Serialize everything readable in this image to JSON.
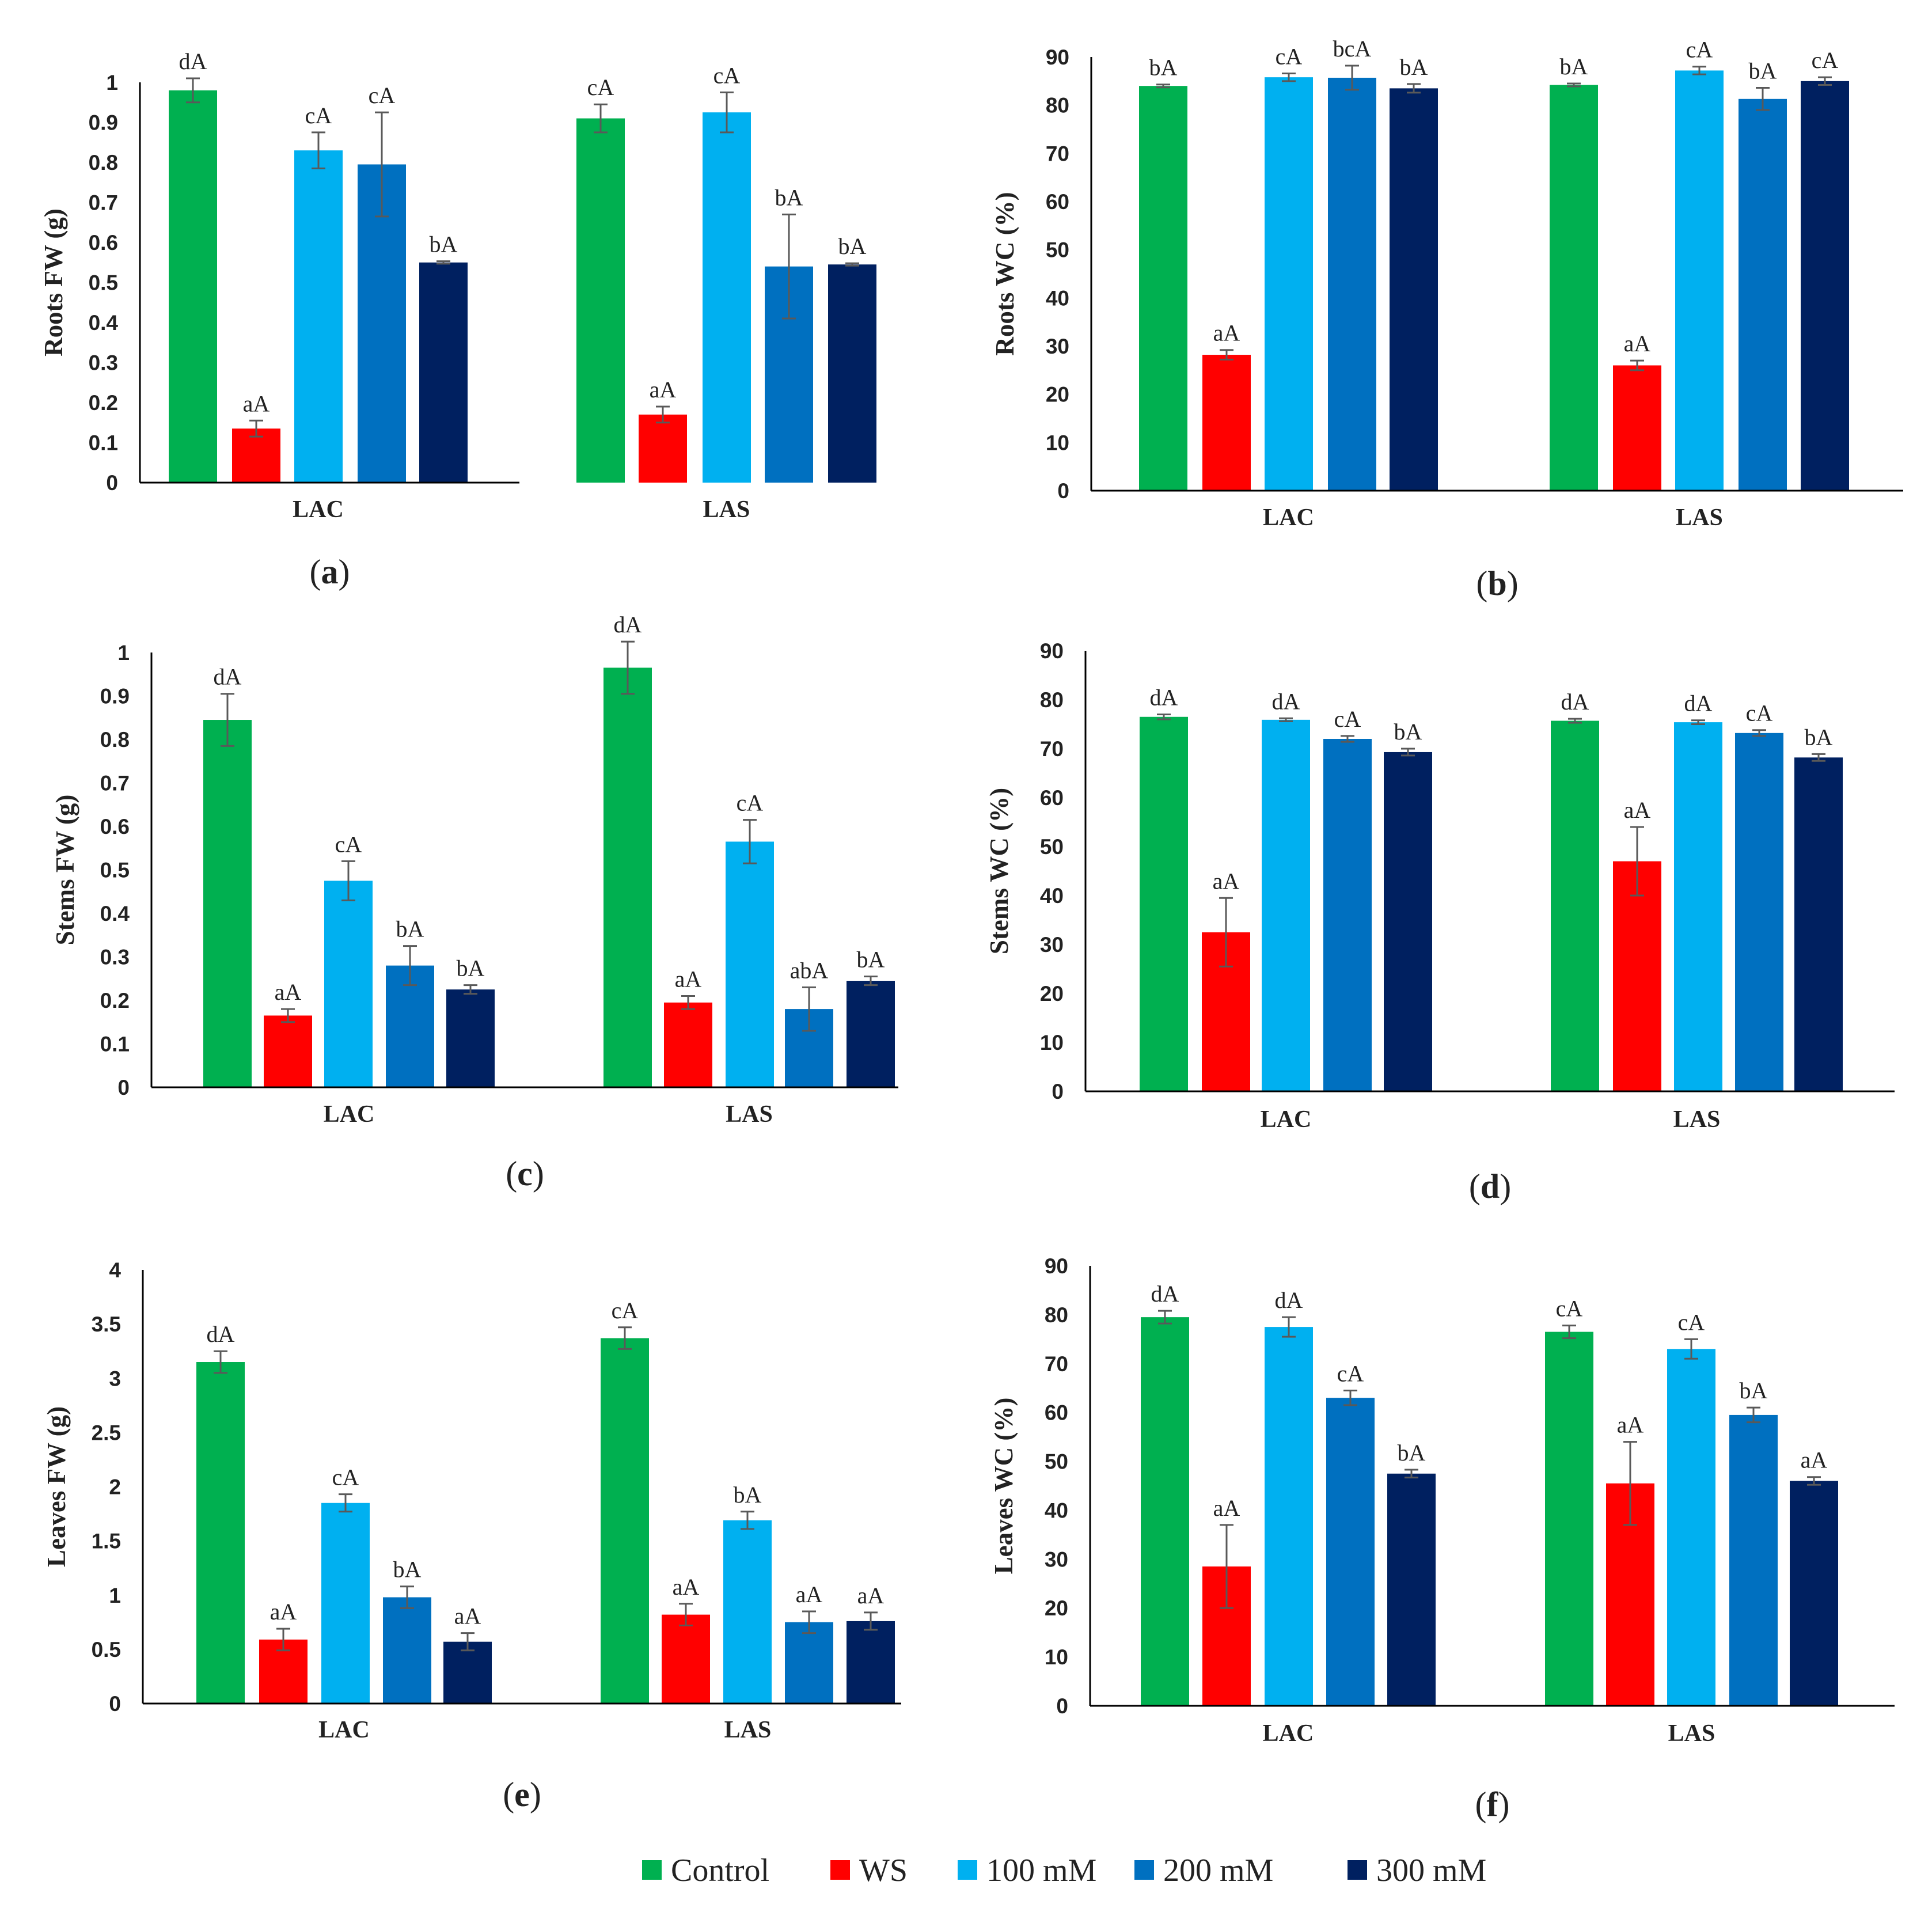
{
  "legend": [
    {
      "name": "Control",
      "color": "#00b050"
    },
    {
      "name": "WS",
      "color": "#ff0000"
    },
    {
      "name": "100 mM",
      "color": "#00b0f0"
    },
    {
      "name": "200 mM",
      "color": "#0070c0"
    },
    {
      "name": "300 mM",
      "color": "#002060"
    }
  ],
  "chart_data": [
    {
      "type": "bar",
      "panel": "a",
      "ylabel": "Roots FW (g)",
      "ylim": [
        0,
        1
      ],
      "yticks": [
        0,
        0.1,
        0.2,
        0.3,
        0.4,
        0.5,
        0.6,
        0.7,
        0.8,
        0.9,
        1
      ],
      "ytick_labels": [
        "0",
        "0.1",
        "0.2",
        "0.3",
        "0.4",
        "0.5",
        "0.6",
        "0.7",
        "0.8",
        "0.9",
        "1"
      ],
      "categories": [
        "LAC",
        "LAS"
      ],
      "series": [
        {
          "name": "Control",
          "values": [
            0.98,
            0.91
          ],
          "errors": [
            0.03,
            0.035
          ],
          "labels": [
            "dA",
            "cA"
          ]
        },
        {
          "name": "WS",
          "values": [
            0.135,
            0.17
          ],
          "errors": [
            0.02,
            0.02
          ],
          "labels": [
            "aA",
            "aA"
          ]
        },
        {
          "name": "100 mM",
          "values": [
            0.83,
            0.925
          ],
          "errors": [
            0.045,
            0.05
          ],
          "labels": [
            "cA",
            "cA"
          ]
        },
        {
          "name": "200 mM",
          "values": [
            0.795,
            0.54
          ],
          "errors": [
            0.13,
            0.13
          ],
          "labels": [
            "cA",
            "bA"
          ]
        },
        {
          "name": "300 mM",
          "values": [
            0.55,
            0.545
          ],
          "errors": [
            0.003,
            0.003
          ],
          "labels": [
            "bA",
            "bA"
          ]
        }
      ]
    },
    {
      "type": "bar",
      "panel": "b",
      "ylabel": "Roots WC (%)",
      "ylim": [
        0,
        90
      ],
      "yticks": [
        0,
        10,
        20,
        30,
        40,
        50,
        60,
        70,
        80,
        90
      ],
      "ytick_labels": [
        "0",
        "10",
        "20",
        "30",
        "40",
        "50",
        "60",
        "70",
        "80",
        "90"
      ],
      "categories": [
        "LAC",
        "LAS"
      ],
      "series": [
        {
          "name": "Control",
          "values": [
            84,
            84.2
          ],
          "errors": [
            0.3,
            0.3
          ],
          "labels": [
            "bA",
            "bA"
          ]
        },
        {
          "name": "WS",
          "values": [
            28.2,
            26
          ],
          "errors": [
            1,
            1
          ],
          "labels": [
            "aA",
            "aA"
          ]
        },
        {
          "name": "100 mM",
          "values": [
            85.8,
            87.2
          ],
          "errors": [
            0.8,
            0.8
          ],
          "labels": [
            "cA",
            "cA"
          ]
        },
        {
          "name": "200 mM",
          "values": [
            85.7,
            81.3
          ],
          "errors": [
            2.5,
            2.3
          ],
          "labels": [
            "bcA",
            "bA"
          ]
        },
        {
          "name": "300 mM",
          "values": [
            83.5,
            85
          ],
          "errors": [
            0.9,
            0.8
          ],
          "labels": [
            "bA",
            "cA"
          ]
        }
      ]
    },
    {
      "type": "bar",
      "panel": "c",
      "ylabel": "Stems FW (g)",
      "ylim": [
        0,
        1
      ],
      "yticks": [
        0,
        0.1,
        0.2,
        0.3,
        0.4,
        0.5,
        0.6,
        0.7,
        0.8,
        0.9,
        1
      ],
      "ytick_labels": [
        "0",
        "0.1",
        "0.2",
        "0.3",
        "0.4",
        "0.5",
        "0.6",
        "0.7",
        "0.8",
        "0.9",
        "1"
      ],
      "categories": [
        "LAC",
        "LAS"
      ],
      "series": [
        {
          "name": "Control",
          "values": [
            0.845,
            0.965
          ],
          "errors": [
            0.06,
            0.06
          ],
          "labels": [
            "dA",
            "dA"
          ]
        },
        {
          "name": "WS",
          "values": [
            0.165,
            0.195
          ],
          "errors": [
            0.015,
            0.015
          ],
          "labels": [
            "aA",
            "aA"
          ]
        },
        {
          "name": "100 mM",
          "values": [
            0.475,
            0.565
          ],
          "errors": [
            0.045,
            0.05
          ],
          "labels": [
            "cA",
            "cA"
          ]
        },
        {
          "name": "200 mM",
          "values": [
            0.28,
            0.18
          ],
          "errors": [
            0.045,
            0.05
          ],
          "labels": [
            "bA",
            "abA"
          ]
        },
        {
          "name": "300 mM",
          "values": [
            0.225,
            0.245
          ],
          "errors": [
            0.01,
            0.01
          ],
          "labels": [
            "bA",
            "bA"
          ]
        }
      ]
    },
    {
      "type": "bar",
      "panel": "d",
      "ylabel": "Stems WC (%)",
      "ylim": [
        0,
        90
      ],
      "yticks": [
        0,
        10,
        20,
        30,
        40,
        50,
        60,
        70,
        80,
        90
      ],
      "ytick_labels": [
        "0",
        "10",
        "20",
        "30",
        "40",
        "50",
        "60",
        "70",
        "80",
        "90"
      ],
      "categories": [
        "LAC",
        "LAS"
      ],
      "series": [
        {
          "name": "Control",
          "values": [
            76.5,
            75.7
          ],
          "errors": [
            0.5,
            0.4
          ],
          "labels": [
            "dA",
            "dA"
          ]
        },
        {
          "name": "WS",
          "values": [
            32.5,
            47
          ],
          "errors": [
            7,
            7
          ],
          "labels": [
            "aA",
            "aA"
          ]
        },
        {
          "name": "100 mM",
          "values": [
            75.9,
            75.4
          ],
          "errors": [
            0.3,
            0.4
          ],
          "labels": [
            "dA",
            "dA"
          ]
        },
        {
          "name": "200 mM",
          "values": [
            72,
            73.2
          ],
          "errors": [
            0.6,
            0.6
          ],
          "labels": [
            "cA",
            "cA"
          ]
        },
        {
          "name": "300 mM",
          "values": [
            69.3,
            68.2
          ],
          "errors": [
            0.7,
            0.7
          ],
          "labels": [
            "bA",
            "bA"
          ]
        }
      ]
    },
    {
      "type": "bar",
      "panel": "e",
      "ylabel": "Leaves FW (g)",
      "ylim": [
        0,
        4
      ],
      "yticks": [
        0,
        0.5,
        1,
        1.5,
        2,
        2.5,
        3,
        3.5,
        4
      ],
      "ytick_labels": [
        "0",
        "0.5",
        "1",
        "1.5",
        "2",
        "2.5",
        "3",
        "3.5",
        "4"
      ],
      "categories": [
        "LAC",
        "LAS"
      ],
      "series": [
        {
          "name": "Control",
          "values": [
            3.15,
            3.37
          ],
          "errors": [
            0.1,
            0.1
          ],
          "labels": [
            "dA",
            "cA"
          ]
        },
        {
          "name": "WS",
          "values": [
            0.59,
            0.82
          ],
          "errors": [
            0.1,
            0.1
          ],
          "labels": [
            "aA",
            "aA"
          ]
        },
        {
          "name": "100 mM",
          "values": [
            1.85,
            1.69
          ],
          "errors": [
            0.08,
            0.08
          ],
          "labels": [
            "cA",
            "bA"
          ]
        },
        {
          "name": "200 mM",
          "values": [
            0.98,
            0.75
          ],
          "errors": [
            0.1,
            0.1
          ],
          "labels": [
            "bA",
            "aA"
          ]
        },
        {
          "name": "300 mM",
          "values": [
            0.57,
            0.76
          ],
          "errors": [
            0.08,
            0.08
          ],
          "labels": [
            "aA",
            "aA"
          ]
        }
      ]
    },
    {
      "type": "bar",
      "panel": "f",
      "ylabel": "Leaves WC (%)",
      "ylim": [
        0,
        90
      ],
      "yticks": [
        0,
        10,
        20,
        30,
        40,
        50,
        60,
        70,
        80,
        90
      ],
      "ytick_labels": [
        "0",
        "10",
        "20",
        "30",
        "40",
        "50",
        "60",
        "70",
        "80",
        "90"
      ],
      "categories": [
        "LAC",
        "LAS"
      ],
      "series": [
        {
          "name": "Control",
          "values": [
            79.5,
            76.5
          ],
          "errors": [
            1.3,
            1.3
          ],
          "labels": [
            "dA",
            "cA"
          ]
        },
        {
          "name": "WS",
          "values": [
            28.5,
            45.5
          ],
          "errors": [
            8.5,
            8.5
          ],
          "labels": [
            "aA",
            "aA"
          ]
        },
        {
          "name": "100 mM",
          "values": [
            77.5,
            73
          ],
          "errors": [
            2,
            2
          ],
          "labels": [
            "dA",
            "cA"
          ]
        },
        {
          "name": "200 mM",
          "values": [
            63,
            59.5
          ],
          "errors": [
            1.5,
            1.5
          ],
          "labels": [
            "cA",
            "bA"
          ]
        },
        {
          "name": "300 mM",
          "values": [
            47.5,
            46
          ],
          "errors": [
            0.8,
            0.8
          ],
          "labels": [
            "bA",
            "aA"
          ]
        }
      ]
    }
  ]
}
